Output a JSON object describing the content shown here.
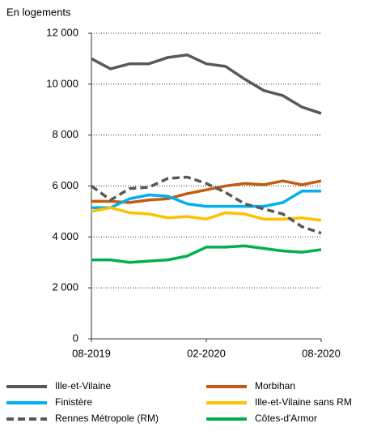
{
  "chart_data": {
    "type": "line",
    "y_axis_label": "En logements",
    "categories": [
      "08-2019",
      null,
      null,
      null,
      null,
      null,
      "02-2020",
      null,
      null,
      null,
      null,
      null,
      "08-2020"
    ],
    "ylim": [
      0,
      12000
    ],
    "yticks": [
      {
        "value": 0,
        "label": "0"
      },
      {
        "value": 2000,
        "label": "2 000"
      },
      {
        "value": 4000,
        "label": "4 000"
      },
      {
        "value": 6000,
        "label": "6 000"
      },
      {
        "value": 8000,
        "label": "8 000"
      },
      {
        "value": 10000,
        "label": "10 000"
      },
      {
        "value": 12000,
        "label": "12 000"
      }
    ],
    "grid": true,
    "series": [
      {
        "name": "Ille-et-Vilaine",
        "color": "#595959",
        "dashed": false,
        "values": [
          11000,
          10600,
          10800,
          10800,
          11050,
          11150,
          10800,
          10700,
          10200,
          9750,
          9550,
          9100,
          8850
        ]
      },
      {
        "name": "Morbihan",
        "color": "#c55a11",
        "dashed": false,
        "values": [
          5400,
          5400,
          5350,
          5450,
          5500,
          5700,
          5850,
          6000,
          6100,
          6050,
          6200,
          6050,
          6200
        ]
      },
      {
        "name": "Finistère",
        "color": "#00b0f0",
        "dashed": false,
        "values": [
          5150,
          5150,
          5500,
          5650,
          5600,
          5300,
          5200,
          5200,
          5200,
          5200,
          5350,
          5800,
          5800
        ]
      },
      {
        "name": "Ille-et-Vilaine sans RM",
        "color": "#ffc000",
        "dashed": false,
        "values": [
          5000,
          5150,
          4950,
          4900,
          4750,
          4800,
          4700,
          4950,
          4900,
          4700,
          4700,
          4750,
          4650
        ]
      },
      {
        "name": "Rennes Métropole (RM)",
        "color": "#595959",
        "dashed": true,
        "values": [
          6000,
          5450,
          5900,
          5950,
          6300,
          6350,
          6100,
          5750,
          5300,
          5100,
          4900,
          4400,
          4150
        ]
      },
      {
        "name": "Côtes-d'Armor",
        "color": "#00b050",
        "dashed": false,
        "values": [
          3100,
          3100,
          3000,
          3050,
          3100,
          3250,
          3600,
          3600,
          3650,
          3550,
          3450,
          3400,
          3500
        ]
      }
    ]
  }
}
